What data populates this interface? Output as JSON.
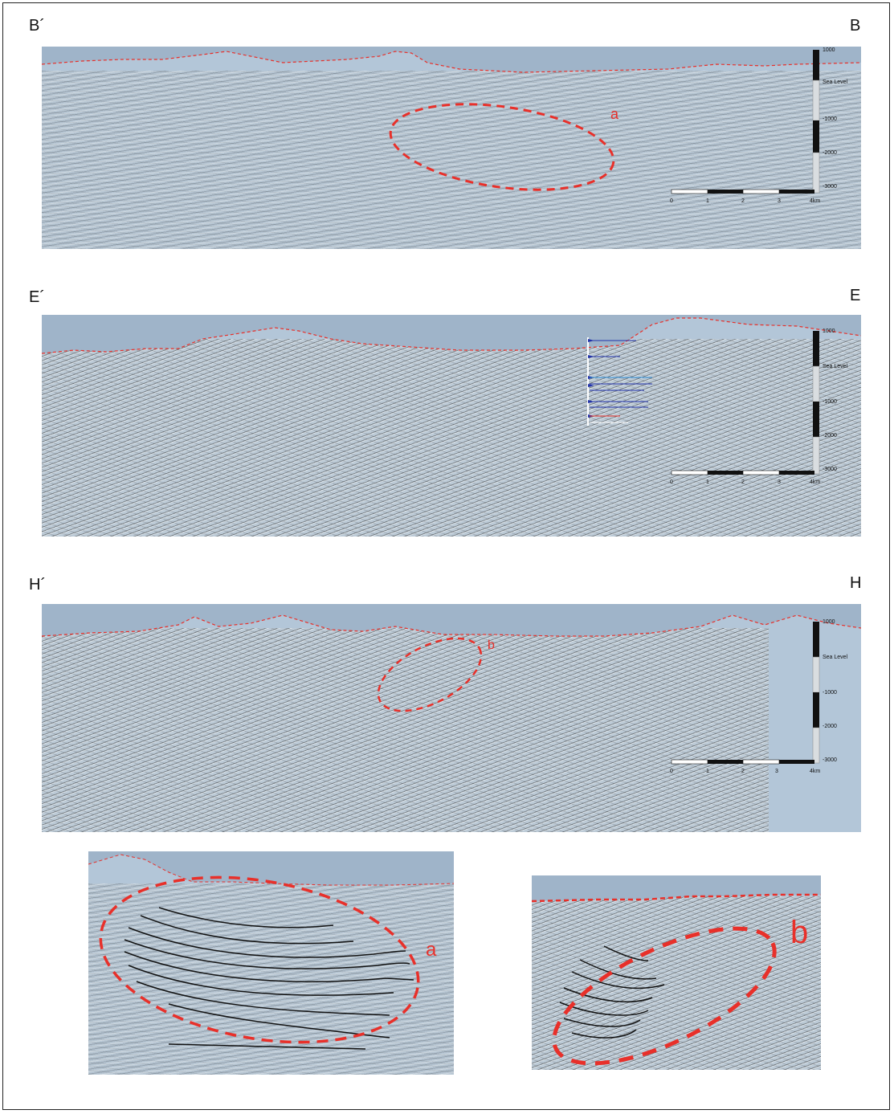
{
  "sections": [
    {
      "left_label": "B´",
      "right_label": "B",
      "ellipse_label": "a"
    },
    {
      "left_label": "E´",
      "right_label": "E"
    },
    {
      "left_label": "H´",
      "right_label": "H",
      "ellipse_label": "b"
    }
  ],
  "depth_scale": {
    "labels": [
      "1000",
      "Sea Level",
      "-1000",
      "-2000",
      "-3000"
    ]
  },
  "horizontal_scale": {
    "labels": [
      "0",
      "1",
      "2",
      "3",
      "4km"
    ]
  },
  "insets": [
    {
      "label": "a"
    },
    {
      "label": "b"
    }
  ],
  "colors": {
    "annotation": "#e8302a",
    "sky": "#9fb4c9",
    "seismic_base": "#b7c6d3",
    "well_marker": "#2233aa"
  }
}
